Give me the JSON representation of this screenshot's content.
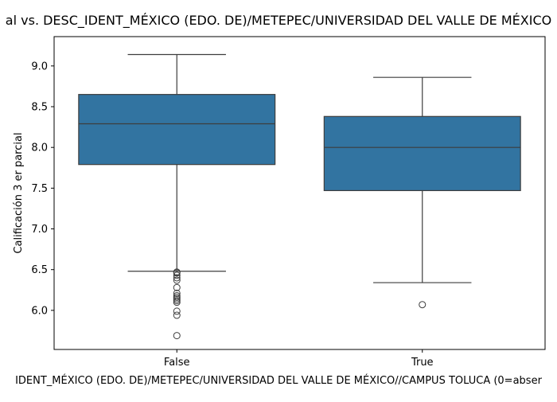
{
  "chart_data": {
    "type": "box",
    "title": "al vs. DESC_IDENT_MÉXICO (EDO. DE)/METEPEC/UNIVERSIDAD DEL VALLE DE MÉXICO",
    "xlabel": "IDENT_MÉXICO (EDO. DE)/METEPEC/UNIVERSIDAD DEL VALLE DE MÉXICO//CAMPUS TOLUCA (0=abser",
    "ylabel": "Calificación 3 er parcial",
    "ylim": [
      5.52,
      9.36
    ],
    "yticks": [
      "6.0",
      "6.5",
      "7.0",
      "7.5",
      "8.0",
      "8.5",
      "9.0"
    ],
    "ytick_values": [
      6.0,
      6.5,
      7.0,
      7.5,
      8.0,
      8.5,
      9.0
    ],
    "categories": [
      "False",
      "True"
    ],
    "grid": false,
    "box_color": "#3274a1",
    "line_color": "#3d3d3d",
    "boxes": [
      {
        "category": "False",
        "whisker_low": 6.48,
        "q1": 7.79,
        "median": 8.29,
        "q3": 8.65,
        "whisker_high": 9.14,
        "outliers": [
          6.47,
          6.46,
          6.43,
          6.4,
          6.37,
          6.28,
          6.21,
          6.18,
          6.16,
          6.14,
          6.12,
          6.1,
          5.99,
          5.94,
          5.69
        ]
      },
      {
        "category": "True",
        "whisker_low": 6.34,
        "q1": 7.47,
        "median": 8.0,
        "q3": 8.38,
        "whisker_high": 8.86,
        "outliers": [
          6.07
        ]
      }
    ]
  }
}
